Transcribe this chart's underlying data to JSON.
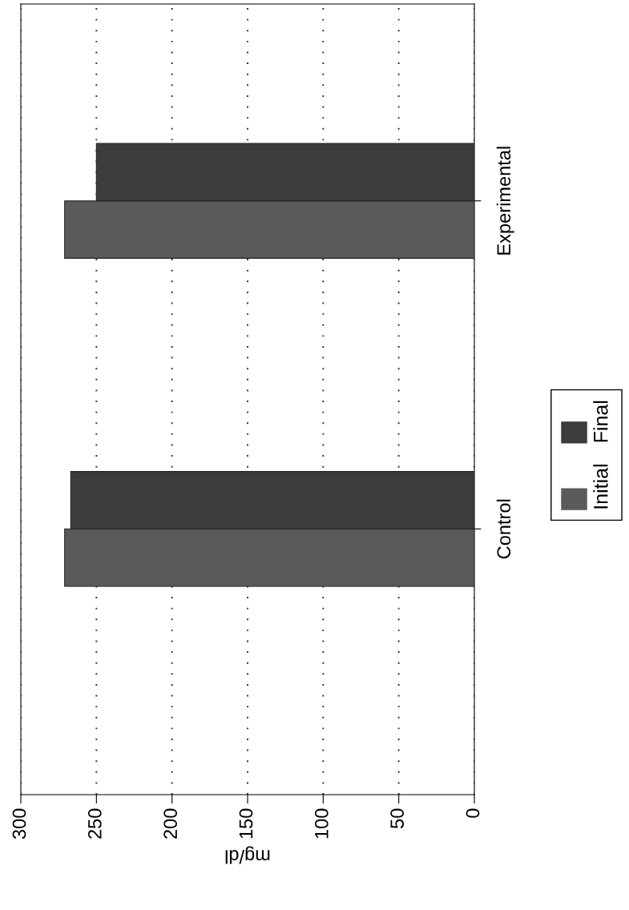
{
  "chart_data": {
    "type": "bar",
    "orientation": "horizontal",
    "xlabel": "mg/dl",
    "categories": [
      "Experimental",
      "Control"
    ],
    "series": [
      {
        "name": "Initial",
        "color": "#5a5a5a",
        "values": [
          271,
          271
        ]
      },
      {
        "name": "Final",
        "color": "#3c3c3c",
        "values": [
          250,
          267
        ]
      }
    ],
    "xlim": [
      300,
      0
    ],
    "xticks": [
      0,
      50,
      100,
      150,
      200,
      250,
      300
    ],
    "grid": "x",
    "legend": "right"
  }
}
